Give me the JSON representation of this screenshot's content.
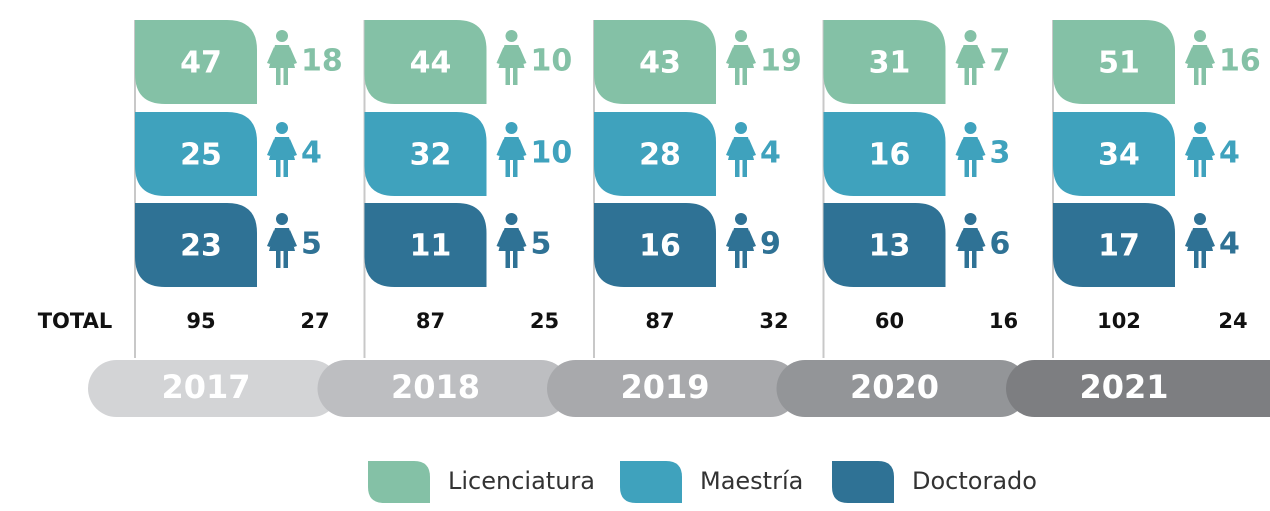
{
  "total_label": "TOTAL",
  "years": [
    {
      "year": "2017",
      "counts": [
        47,
        25,
        23
      ],
      "women": [
        18,
        4,
        5
      ],
      "total": 95,
      "total_women": 27
    },
    {
      "year": "2018",
      "counts": [
        44,
        32,
        11
      ],
      "women": [
        10,
        10,
        5
      ],
      "total": 87,
      "total_women": 25
    },
    {
      "year": "2019",
      "counts": [
        43,
        28,
        16
      ],
      "women": [
        19,
        4,
        9
      ],
      "total": 87,
      "total_women": 32
    },
    {
      "year": "2020",
      "counts": [
        31,
        16,
        13
      ],
      "women": [
        7,
        3,
        6
      ],
      "total": 60,
      "total_women": 16
    },
    {
      "year": "2021",
      "counts": [
        51,
        34,
        17
      ],
      "women": [
        16,
        4,
        4
      ],
      "total": 102,
      "total_women": 24
    }
  ],
  "legend": [
    "Licenciatura",
    "Maestría",
    "Doctorado"
  ],
  "colors": [
    "#84c1a6",
    "#3fa2bd",
    "#2f7295"
  ],
  "year_colors": [
    "#d3d4d6",
    "#bdbec1",
    "#a8a9ac",
    "#939598",
    "#7d7e81"
  ]
}
